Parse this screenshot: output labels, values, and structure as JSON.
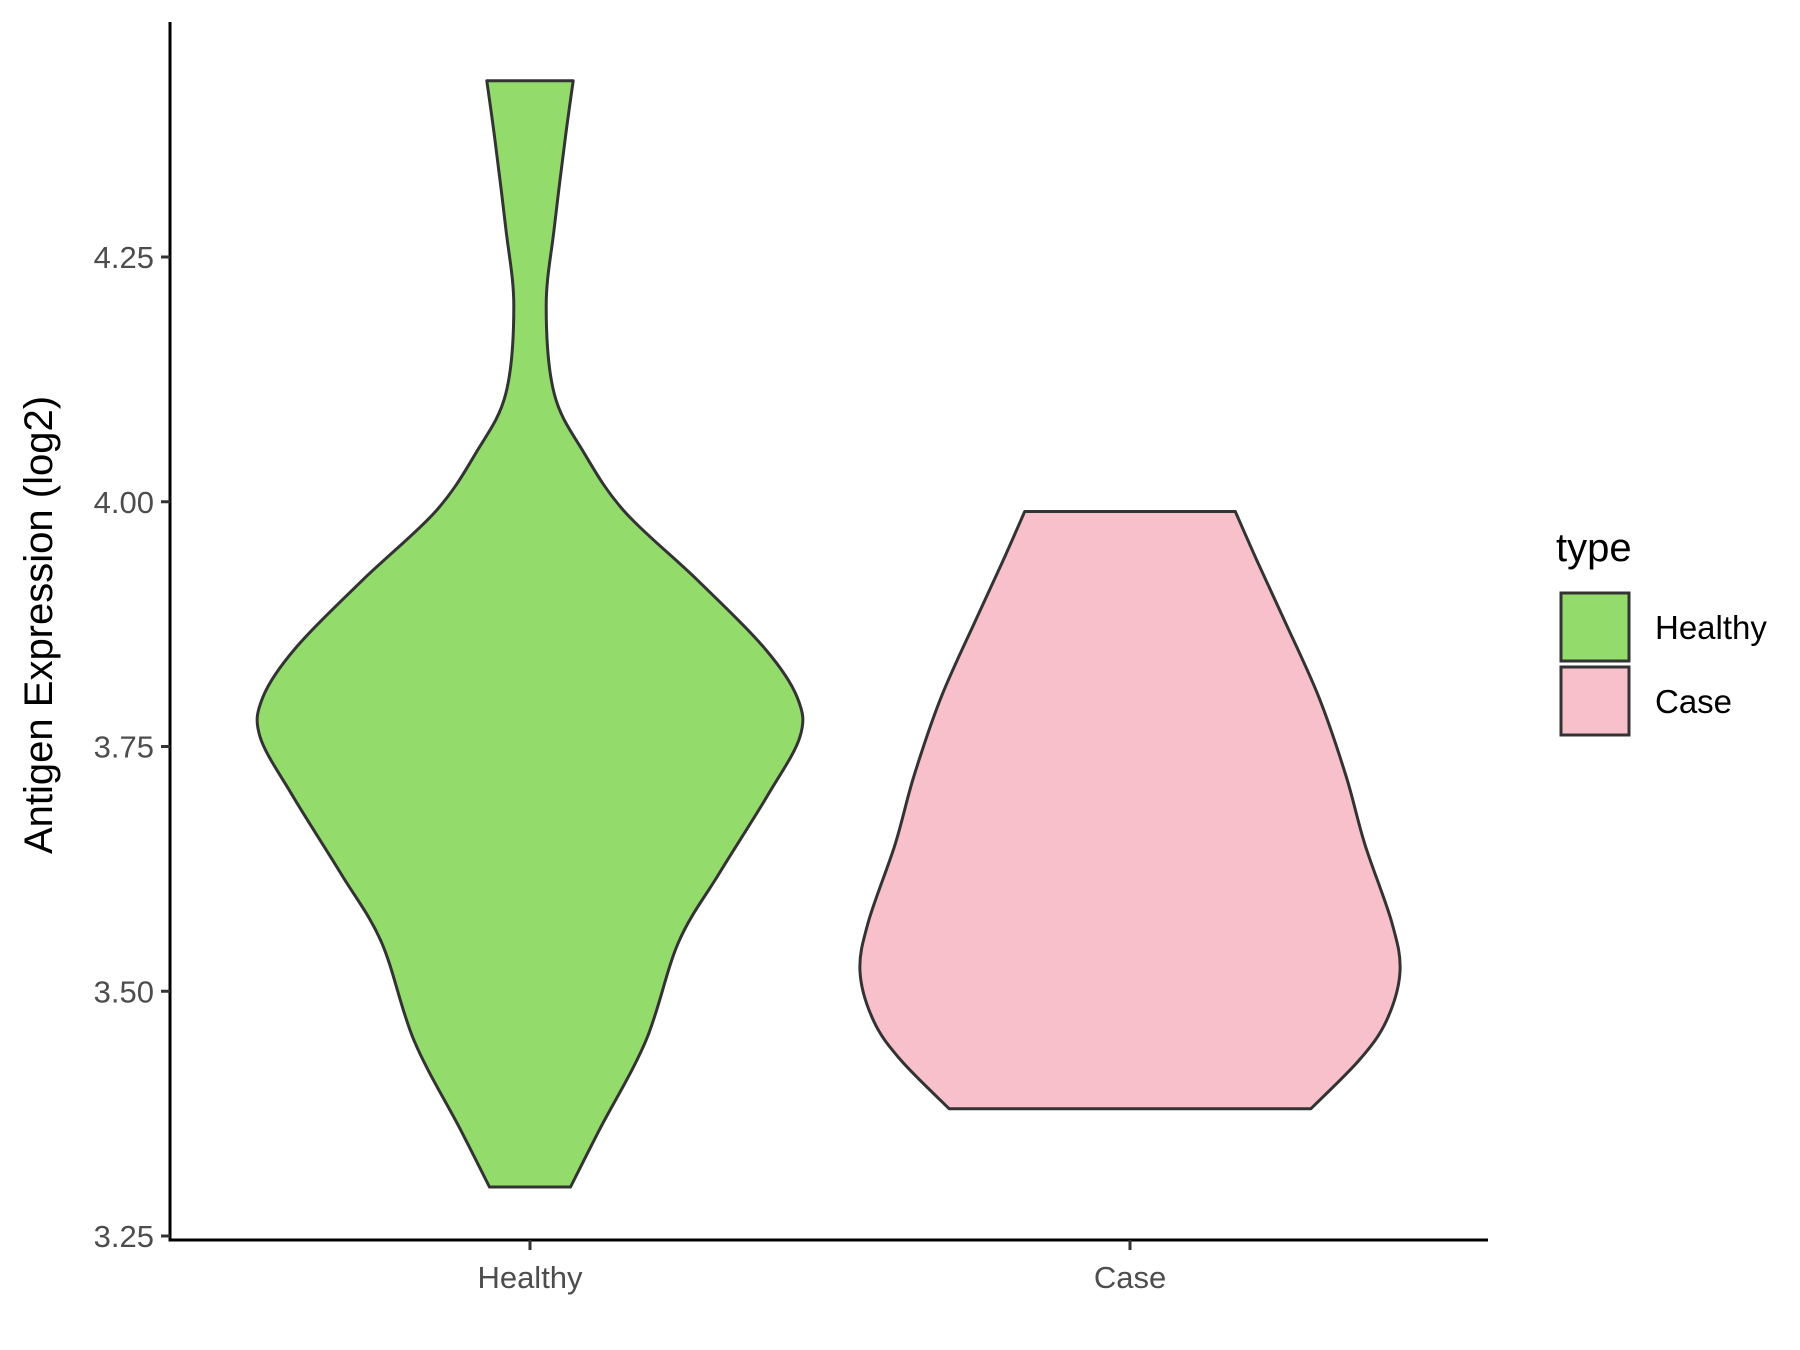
{
  "chart_data": {
    "type": "violin",
    "ylabel": "Antigen Expression (log2)",
    "xlabel": "",
    "ylim": [
      3.25,
      4.45
    ],
    "yticks": [
      3.25,
      3.5,
      3.75,
      4.0,
      4.25
    ],
    "ytick_labels": [
      "3.25",
      "3.50",
      "3.75",
      "4.00",
      "4.25"
    ],
    "categories": [
      "Healthy",
      "Case"
    ],
    "grid": false,
    "legend": {
      "title": "type",
      "position": "right",
      "entries": [
        "Healthy",
        "Case"
      ]
    },
    "series": [
      {
        "name": "Healthy",
        "color": "#93dc6b",
        "min": 3.3,
        "max": 4.43,
        "density_profile": [
          [
            3.3,
            0.15
          ],
          [
            3.36,
            0.26
          ],
          [
            3.45,
            0.43
          ],
          [
            3.55,
            0.55
          ],
          [
            3.62,
            0.7
          ],
          [
            3.7,
            0.88
          ],
          [
            3.76,
            1.0
          ],
          [
            3.8,
            0.99
          ],
          [
            3.85,
            0.87
          ],
          [
            3.92,
            0.62
          ],
          [
            3.99,
            0.35
          ],
          [
            4.05,
            0.2
          ],
          [
            4.11,
            0.09
          ],
          [
            4.2,
            0.06
          ],
          [
            4.28,
            0.09
          ],
          [
            4.37,
            0.13
          ],
          [
            4.43,
            0.16
          ]
        ]
      },
      {
        "name": "Case",
        "color": "#f7c0cb",
        "min": 3.38,
        "max": 3.99,
        "density_profile": [
          [
            3.38,
            0.67
          ],
          [
            3.43,
            0.85
          ],
          [
            3.47,
            0.95
          ],
          [
            3.52,
            1.0
          ],
          [
            3.57,
            0.97
          ],
          [
            3.65,
            0.87
          ],
          [
            3.72,
            0.8
          ],
          [
            3.8,
            0.7
          ],
          [
            3.88,
            0.57
          ],
          [
            3.94,
            0.47
          ],
          [
            3.99,
            0.39
          ]
        ]
      }
    ]
  }
}
